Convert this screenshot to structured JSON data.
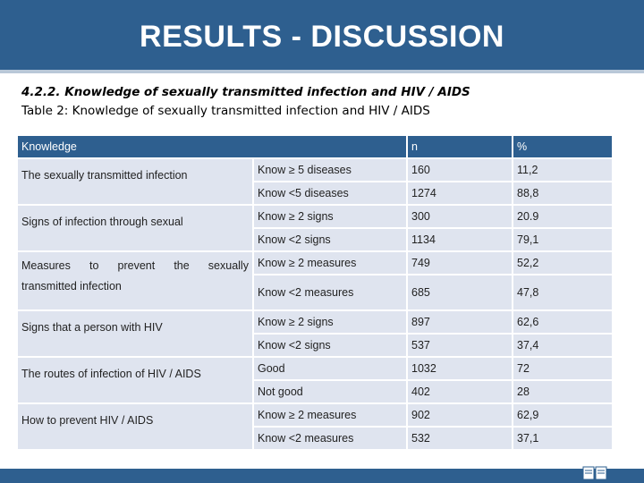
{
  "header": {
    "title": "RESULTS - DISCUSSION"
  },
  "section": {
    "heading": "4.2.2. Knowledge of sexually transmitted infection and HIV / AIDS",
    "caption": "Table 2: Knowledge of sexually transmitted infection and HIV / AIDS"
  },
  "table": {
    "headers": {
      "knowledge": "Knowledge",
      "n": "n",
      "pct": "%"
    },
    "groups": [
      {
        "category": "The sexually transmitted infection",
        "rows": [
          {
            "label": "Know ≥ 5 diseases",
            "n": "160",
            "pct": "11,2"
          },
          {
            "label": "Know <5 diseases",
            "n": "1274",
            "pct": "88,8"
          }
        ]
      },
      {
        "category": "Signs of infection through sexual",
        "rows": [
          {
            "label": "Know ≥ 2 signs",
            "n": "300",
            "pct": "20.9"
          },
          {
            "label": "Know <2 signs",
            "n": "1134",
            "pct": "79,1"
          }
        ]
      },
      {
        "category_words": [
          "Measures",
          "to",
          "prevent",
          "the",
          "sexually"
        ],
        "category_line2": "transmitted infection",
        "rows": [
          {
            "label": "Know ≥ 2 measures",
            "n": "749",
            "pct": "52,2"
          },
          {
            "label": "Know <2 measures",
            "n": "685",
            "pct": "47,8"
          }
        ]
      },
      {
        "category": "Signs that a person with HIV",
        "rows": [
          {
            "label": "Know ≥ 2 signs",
            "n": "897",
            "pct": "62,6"
          },
          {
            "label": "Know <2 signs",
            "n": "537",
            "pct": "37,4"
          }
        ]
      },
      {
        "category": "The routes of infection of HIV / AIDS",
        "rows": [
          {
            "label": "Good",
            "n": "1032",
            "pct": "72"
          },
          {
            "label": "Not good",
            "n": "402",
            "pct": "28"
          }
        ]
      },
      {
        "category": "How to prevent HIV / AIDS",
        "rows": [
          {
            "label": "Know ≥ 2 measures",
            "n": "902",
            "pct": "62,9"
          },
          {
            "label": "Know <2 measures",
            "n": "532",
            "pct": "37,1"
          }
        ]
      }
    ]
  },
  "colors": {
    "header_bg": "#2e5f8f",
    "cell_bg": "#dfe4ef",
    "text": "#222222"
  },
  "footer": {
    "icon": "book-icon"
  }
}
